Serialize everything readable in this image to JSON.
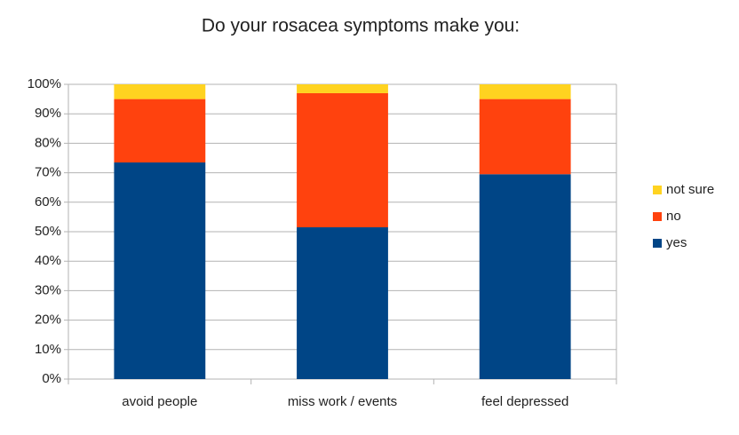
{
  "chart_data": {
    "type": "bar",
    "stacked": true,
    "title": "Do your rosacea symptoms make you:",
    "categories": [
      "avoid people",
      "miss work / events",
      "feel depressed"
    ],
    "series": [
      {
        "name": "yes",
        "color": "#004586",
        "values": [
          73.5,
          51.5,
          69.5
        ]
      },
      {
        "name": "no",
        "color": "#ff420e",
        "values": [
          21.5,
          45.5,
          25.5
        ]
      },
      {
        "name": "not sure",
        "color": "#ffd320",
        "values": [
          5,
          3,
          5
        ]
      }
    ],
    "ylim": [
      0,
      100
    ],
    "yticks": [
      {
        "value": 0,
        "label": "0%"
      },
      {
        "value": 10,
        "label": "10%"
      },
      {
        "value": 20,
        "label": "20%"
      },
      {
        "value": 30,
        "label": "30%"
      },
      {
        "value": 40,
        "label": "40%"
      },
      {
        "value": 50,
        "label": "50%"
      },
      {
        "value": 60,
        "label": "60%"
      },
      {
        "value": 70,
        "label": "70%"
      },
      {
        "value": 80,
        "label": "80%"
      },
      {
        "value": 90,
        "label": "90%"
      },
      {
        "value": 100,
        "label": "100%"
      }
    ],
    "grid": true,
    "legend": "right"
  }
}
